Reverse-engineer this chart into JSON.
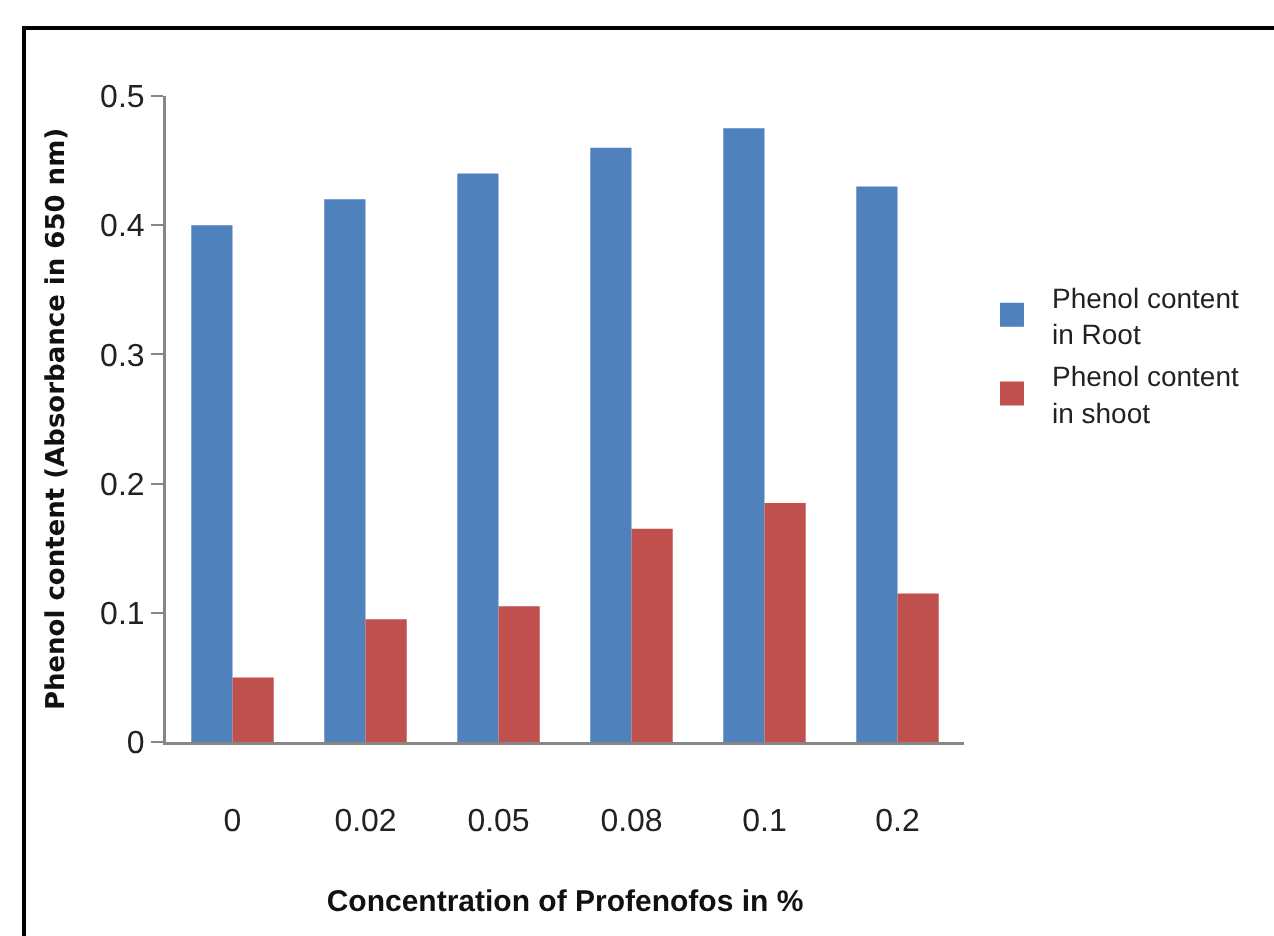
{
  "chart_data": {
    "type": "bar",
    "xlabel": "Concentration of Profenofos in %",
    "ylabel": "Phenol content (Absorbance in 650 nm)",
    "categories": [
      "0",
      "0.02",
      "0.05",
      "0.08",
      "0.1",
      "0.2"
    ],
    "series": [
      {
        "name": "Phenol content in Root",
        "color": "#4f81bd",
        "values": [
          0.4,
          0.42,
          0.44,
          0.46,
          0.475,
          0.43
        ]
      },
      {
        "name": "Phenol content in shoot",
        "color": "#c0504d",
        "values": [
          0.05,
          0.095,
          0.105,
          0.165,
          0.185,
          0.115
        ]
      }
    ],
    "ylim": [
      0,
      0.5
    ],
    "yticks": [
      0,
      0.1,
      0.2,
      0.3,
      0.4,
      0.5
    ],
    "grid": false,
    "legend": "right"
  }
}
